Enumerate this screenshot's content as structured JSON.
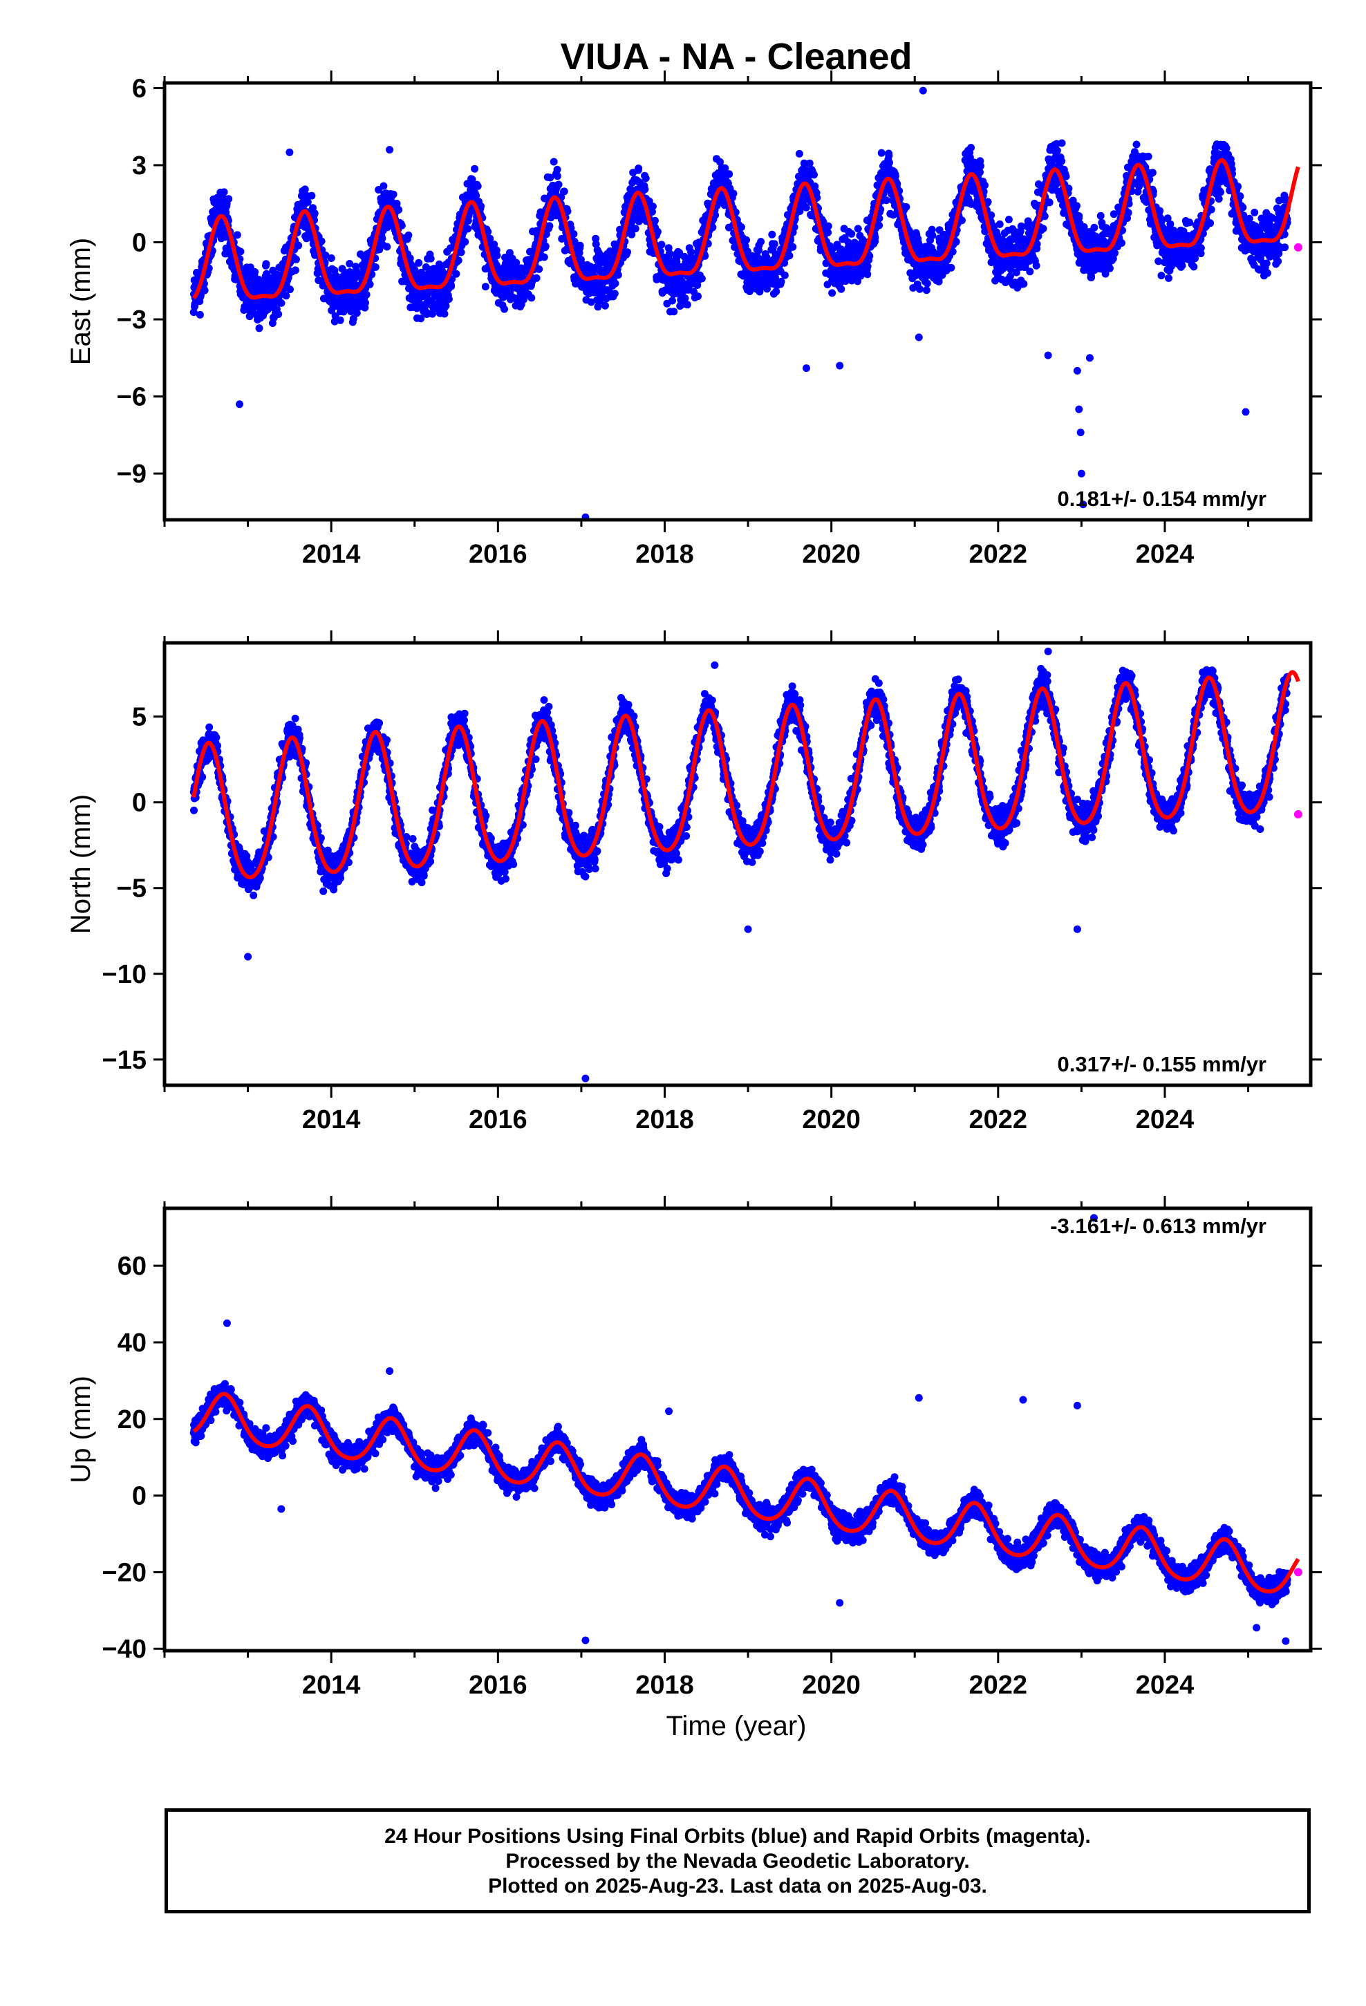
{
  "title": "VIUA  - NA - Cleaned",
  "xlabel": "Time (year)",
  "footer": {
    "line1": "24 Hour Positions Using Final Orbits (blue) and Rapid Orbits (magenta).",
    "line2": "Processed by the Nevada Geodetic Laboratory.",
    "line3": "Plotted on 2025-Aug-23. Last data on 2025-Aug-03."
  },
  "colors": {
    "final_points": "#0000ff",
    "rapid_points": "#ff00ff",
    "fit_line": "#ff0000",
    "frame": "#000000"
  },
  "chart_data": [
    {
      "type": "scatter",
      "ylabel": "East (mm)",
      "rate": "0.181+/- 0.154 mm/yr",
      "xlim": [
        2012.0,
        2025.75
      ],
      "ylim": [
        -10.8,
        6.2
      ],
      "x_ticks": [
        2014,
        2016,
        2018,
        2020,
        2022,
        2024
      ],
      "y_ticks": [
        -9,
        -6,
        -3,
        0,
        3,
        6
      ],
      "y_tick_labels": [
        "−9",
        "−6",
        "−3",
        "0",
        "3",
        "6"
      ],
      "data_start": 2012.35,
      "data_end": 2025.47,
      "trend": {
        "at_2012": -1.2,
        "rate_mm_per_yr": 0.181
      },
      "seasonal": {
        "annual_amplitude": 1.6,
        "annual_peak_month_fraction": 0.68,
        "semiannual_amplitude": 0.5
      },
      "scatter_spread": 1.3,
      "rapid_points": [
        {
          "x": 2025.6,
          "y": -0.2
        }
      ],
      "outliers": [
        {
          "x": 2012.9,
          "y": -6.3
        },
        {
          "x": 2013.5,
          "y": 3.5
        },
        {
          "x": 2014.7,
          "y": 3.6
        },
        {
          "x": 2017.05,
          "y": -10.7
        },
        {
          "x": 2019.7,
          "y": -4.9
        },
        {
          "x": 2020.1,
          "y": -4.8
        },
        {
          "x": 2021.1,
          "y": 5.9
        },
        {
          "x": 2021.05,
          "y": -3.7
        },
        {
          "x": 2022.6,
          "y": -4.4
        },
        {
          "x": 2022.95,
          "y": -5.0
        },
        {
          "x": 2022.97,
          "y": -6.5
        },
        {
          "x": 2022.99,
          "y": -7.4
        },
        {
          "x": 2023.0,
          "y": -9.0
        },
        {
          "x": 2023.02,
          "y": -10.2
        },
        {
          "x": 2024.97,
          "y": -6.6
        },
        {
          "x": 2023.1,
          "y": -4.5
        }
      ]
    },
    {
      "type": "scatter",
      "ylabel": "North (mm)",
      "rate": "0.317+/- 0.155 mm/yr",
      "xlim": [
        2012.0,
        2025.75
      ],
      "ylim": [
        -16.5,
        9.3
      ],
      "x_ticks": [
        2014,
        2016,
        2018,
        2020,
        2022,
        2024
      ],
      "y_ticks": [
        -15,
        -10,
        -5,
        0,
        5
      ],
      "y_tick_labels": [
        "−15",
        "−10",
        "−5",
        "0",
        "5"
      ],
      "data_start": 2012.35,
      "data_end": 2025.47,
      "trend": {
        "at_2012": -1.2,
        "rate_mm_per_yr": 0.317
      },
      "seasonal": {
        "annual_amplitude": 4.0,
        "annual_peak_month_fraction": 0.53,
        "semiannual_amplitude": 0.5
      },
      "scatter_spread": 1.3,
      "rapid_points": [
        {
          "x": 2025.6,
          "y": -0.7
        }
      ],
      "outliers": [
        {
          "x": 2017.05,
          "y": -16.1
        },
        {
          "x": 2018.6,
          "y": 8.0
        },
        {
          "x": 2019.0,
          "y": -7.4
        },
        {
          "x": 2022.6,
          "y": 8.8
        },
        {
          "x": 2022.95,
          "y": -7.4
        },
        {
          "x": 2013.0,
          "y": -9.0
        }
      ]
    },
    {
      "type": "scatter",
      "ylabel": "Up (mm)",
      "rate": "-3.161+/- 0.613 mm/yr",
      "xlim": [
        2012.0,
        2025.75
      ],
      "ylim": [
        -40.5,
        75.0
      ],
      "x_ticks": [
        2014,
        2016,
        2018,
        2020,
        2022,
        2024
      ],
      "y_ticks": [
        -40,
        -20,
        0,
        20,
        40,
        60
      ],
      "y_tick_labels": [
        "−40",
        "−20",
        "0",
        "20",
        "40",
        "60"
      ],
      "data_start": 2012.35,
      "data_end": 2025.47,
      "trend": {
        "at_2012": 22.0,
        "rate_mm_per_yr": -3.161
      },
      "seasonal": {
        "annual_amplitude": 6.0,
        "annual_peak_month_fraction": 0.72,
        "semiannual_amplitude": 0.8
      },
      "scatter_spread": 4.0,
      "rapid_points": [
        {
          "x": 2025.6,
          "y": -20.0
        }
      ],
      "outliers": [
        {
          "x": 2013.4,
          "y": -3.5
        },
        {
          "x": 2017.05,
          "y": -37.8
        },
        {
          "x": 2018.05,
          "y": 22.0
        },
        {
          "x": 2021.05,
          "y": 25.5
        },
        {
          "x": 2022.3,
          "y": 25.0
        },
        {
          "x": 2022.95,
          "y": 23.5
        },
        {
          "x": 2023.15,
          "y": 72.5
        },
        {
          "x": 2025.1,
          "y": -34.5
        },
        {
          "x": 2025.45,
          "y": -38.0
        },
        {
          "x": 2020.1,
          "y": -28.0
        },
        {
          "x": 2014.7,
          "y": 32.5
        },
        {
          "x": 2012.75,
          "y": 45.0
        }
      ]
    }
  ]
}
